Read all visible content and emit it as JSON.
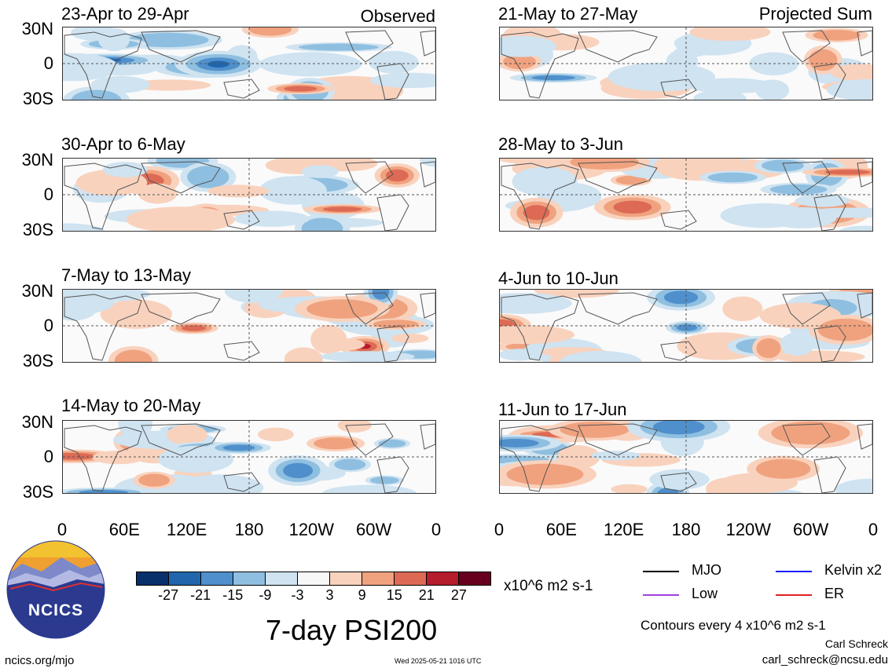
{
  "panels": {
    "observed_label": "Observed",
    "projected_label": "Projected Sum",
    "left": [
      {
        "date_range": "23-Apr to 29-Apr"
      },
      {
        "date_range": "30-Apr to 6-May"
      },
      {
        "date_range": "7-May to 13-May"
      },
      {
        "date_range": "14-May to 20-May"
      }
    ],
    "right": [
      {
        "date_range": "21-May to 27-May"
      },
      {
        "date_range": "28-May to 3-Jun"
      },
      {
        "date_range": "4-Jun to 10-Jun"
      },
      {
        "date_range": "11-Jun to 17-Jun"
      }
    ],
    "lat_labels": [
      "30N",
      "0",
      "30S"
    ],
    "lon_labels": [
      "0",
      "60E",
      "120E",
      "180",
      "120W",
      "60W",
      "0"
    ]
  },
  "colorbar": {
    "colors": [
      "#08306b",
      "#2166ac",
      "#4f8fcc",
      "#8fbfe0",
      "#cfe3f1",
      "#f7f7f7",
      "#f9d2bd",
      "#f0a27f",
      "#dd6a55",
      "#b51c2c",
      "#67001f"
    ],
    "tick_labels": [
      "-27",
      "-21",
      "-15",
      "-9",
      "-3",
      "3",
      "9",
      "15",
      "21",
      "27"
    ],
    "units": "x10^6 m2 s-1"
  },
  "legend": {
    "items": [
      {
        "label": "MJO",
        "color": "#000000"
      },
      {
        "label": "Kelvin x2",
        "color": "#1a1aff"
      },
      {
        "label": "Low",
        "color": "#a040e0"
      },
      {
        "label": "ER",
        "color": "#e02020"
      }
    ],
    "contours": "Contours every 4 x10^6 m2 s-1"
  },
  "main_title": "7-day PSI200",
  "logo_text": "NCICS",
  "footer": {
    "url": "ncics.org/mjo",
    "timestamp": "Wed 2025-05-21 1016 UTC",
    "author": "Carl Schreck",
    "email": "carl_schreck@ncsu.edu"
  }
}
